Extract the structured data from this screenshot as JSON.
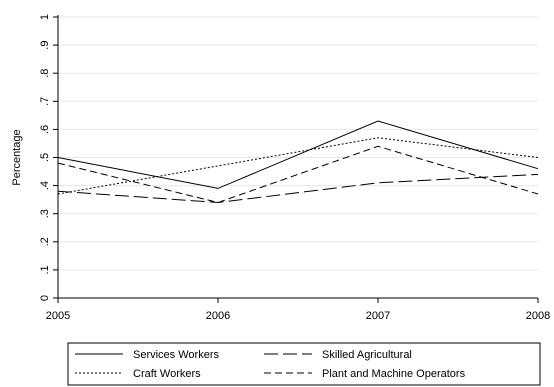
{
  "chart_data": {
    "type": "line",
    "x": [
      2005,
      2006,
      2007,
      2008
    ],
    "xticks": [
      "2005",
      "2006",
      "2007",
      "2008"
    ],
    "yticks": [
      "0",
      ".1",
      ".2",
      ".3",
      ".4",
      ".5",
      ".6",
      ".7",
      ".8",
      ".9",
      "1"
    ],
    "ytick_values": [
      0,
      0.1,
      0.2,
      0.3,
      0.4,
      0.5,
      0.6,
      0.7,
      0.8,
      0.9,
      1.0
    ],
    "ylim": [
      0,
      1
    ],
    "xlabel": "",
    "ylabel": "Percentage",
    "grid": "horizontal",
    "legend_position": "bottom",
    "series": [
      {
        "name": "Services Workers",
        "values": [
          0.5,
          0.39,
          0.63,
          0.46
        ],
        "style": "solid",
        "color": "#000000"
      },
      {
        "name": "Skilled Agricultural",
        "values": [
          0.38,
          0.34,
          0.41,
          0.44
        ],
        "style": "longdash",
        "color": "#000000"
      },
      {
        "name": "Craft Workers",
        "values": [
          0.37,
          0.47,
          0.57,
          0.5
        ],
        "style": "dotted",
        "color": "#000000"
      },
      {
        "name": "Plant and Machine Operators",
        "values": [
          0.48,
          0.34,
          0.54,
          0.37
        ],
        "style": "dash",
        "color": "#000000"
      }
    ]
  }
}
